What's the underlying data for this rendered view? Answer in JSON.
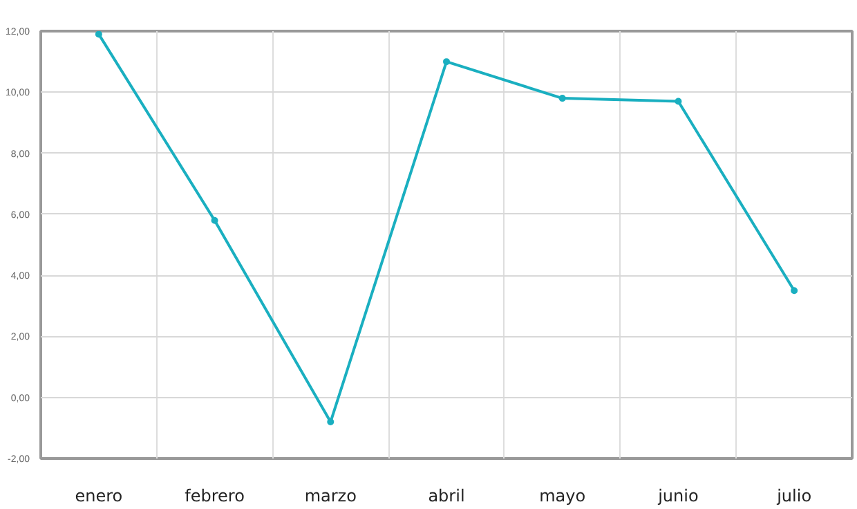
{
  "chart_data": {
    "type": "line",
    "categories": [
      "enero",
      "febrero",
      "marzo",
      "abril",
      "mayo",
      "junio",
      "julio"
    ],
    "series": [
      {
        "color": "#1aafc0",
        "values": [
          11.9,
          5.8,
          -0.8,
          11.0,
          9.8,
          9.7,
          3.5
        ]
      }
    ],
    "ylim": [
      -2,
      12
    ],
    "yticks": [
      {
        "value": -2,
        "label": "-2,00"
      },
      {
        "value": 0,
        "label": "0,00"
      },
      {
        "value": 2,
        "label": "2,00"
      },
      {
        "value": 4,
        "label": "4,00"
      },
      {
        "value": 6,
        "label": "6,00"
      },
      {
        "value": 8,
        "label": "8,00"
      },
      {
        "value": 10,
        "label": "10,00"
      },
      {
        "value": 12,
        "label": "12,00"
      }
    ],
    "grid": true,
    "marker": "circle",
    "line_style": "solid"
  }
}
